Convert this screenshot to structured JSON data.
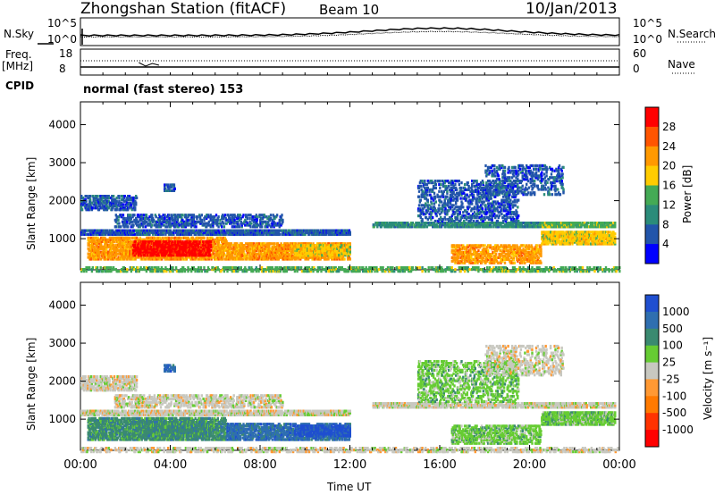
{
  "header": {
    "station": "Zhongshan Station (fitACF)",
    "beam": "Beam 10",
    "date": "10/Jan/2013"
  },
  "top_panels": {
    "nsky_label": "N.Sky",
    "nsearch_label": "N.Search",
    "noise_ticks": [
      "10^5",
      "10^0"
    ],
    "freq_label_1": "Freq.",
    "freq_label_2": "[MHz]",
    "freq_ticks": [
      "18",
      "8"
    ],
    "nave_label": "Nave",
    "nave_ticks": [
      "60",
      "0"
    ],
    "cpid_label": "CPID",
    "cpid_text": "normal (fast stereo) 153"
  },
  "chart_data": [
    {
      "type": "heatmap",
      "name": "power",
      "xlabel": "Time UT",
      "ylabel": "Slant Range [km]",
      "x_ticks": [
        "00:00",
        "04:00",
        "08:00",
        "12:00",
        "16:00",
        "20:00",
        "00:00"
      ],
      "xlim_hours": [
        0,
        24
      ],
      "ylim_km": [
        180,
        4600
      ],
      "y_ticks": [
        1000,
        2000,
        3000,
        4000
      ],
      "colorbar_label": "Power [dB]",
      "colorbar_ticks": [
        "28",
        "24",
        "20",
        "16",
        "12",
        "8",
        "4"
      ],
      "colorbar_colors": [
        "#ff0000",
        "#ff5500",
        "#ff9900",
        "#ffcc00",
        "#44aa55",
        "#2b8c7a",
        "#2255aa",
        "#0000ff"
      ]
    },
    {
      "type": "heatmap",
      "name": "velocity",
      "xlabel": "Time UT",
      "ylabel": "Slant Range [km]",
      "x_ticks": [
        "00:00",
        "04:00",
        "08:00",
        "12:00",
        "16:00",
        "20:00",
        "00:00"
      ],
      "xlim_hours": [
        0,
        24
      ],
      "ylim_km": [
        180,
        4600
      ],
      "y_ticks": [
        1000,
        2000,
        3000,
        4000
      ],
      "colorbar_label": "Velocity [m s⁻¹]",
      "colorbar_ticks": [
        "1000",
        "500",
        "100",
        "25",
        "-25",
        "-100",
        "-500",
        "-1000"
      ],
      "colorbar_colors": [
        "#1f4fd0",
        "#2f6fb0",
        "#3a8a70",
        "#66cc33",
        "#c8c8c0",
        "#ff9933",
        "#ff7a00",
        "#ff3300",
        "#ff0000"
      ]
    }
  ],
  "xlabel_text": "Time UT"
}
